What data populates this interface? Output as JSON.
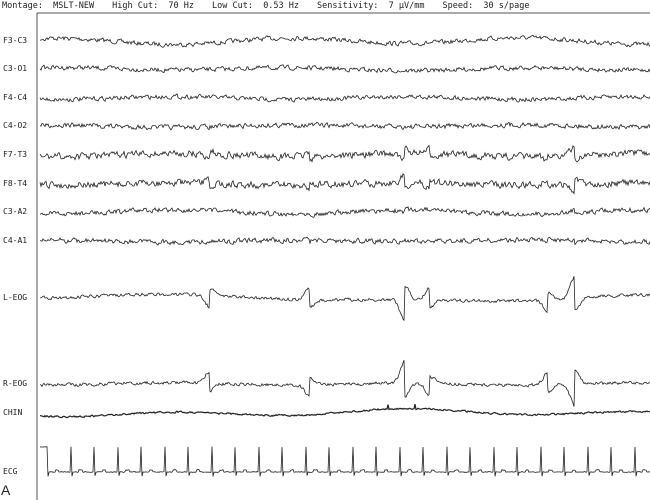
{
  "header": {
    "montage": "Montage:  MSLT-NEW",
    "high_cut": "High Cut:  70 Hz",
    "low_cut": "Low Cut:  0.53 Hz",
    "sensitivity": "Sensitivity:  7 µV/mm",
    "speed": "Speed:  30 s/page"
  },
  "channels": [
    "F3-C3",
    "C3-O1",
    "F4-C4",
    "C4-O2",
    "F7-T3",
    "F8-T4",
    "C3-A2",
    "C4-A1",
    "L-EOG",
    "R-EOG",
    "CHIN",
    "ECG"
  ],
  "panel_letter": "A",
  "trace_color": "#222222"
}
